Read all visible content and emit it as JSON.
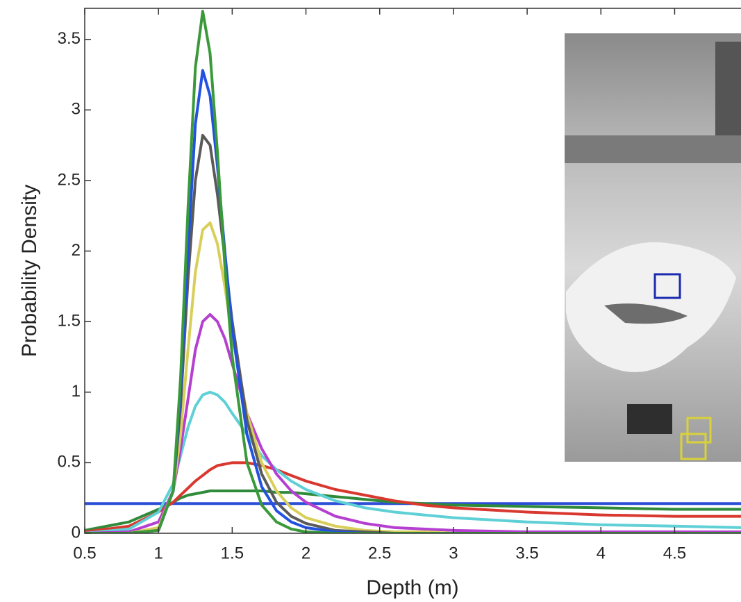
{
  "chart_data": {
    "type": "line",
    "x_label": "Depth (m)",
    "y_label": "Probability Density",
    "x": [
      0.5,
      0.8,
      1.0,
      1.1,
      1.15,
      1.2,
      1.25,
      1.3,
      1.35,
      1.4,
      1.45,
      1.5,
      1.6,
      1.7,
      1.8,
      1.9,
      2.0,
      2.2,
      2.4,
      2.6,
      2.8,
      3.0,
      3.5,
      4.0,
      4.5,
      4.95
    ],
    "series": [
      {
        "color": "#2b4fd6",
        "values": [
          0.21,
          0.21,
          0.21,
          0.21,
          0.21,
          0.21,
          0.21,
          0.21,
          0.21,
          0.21,
          0.21,
          0.21,
          0.21,
          0.21,
          0.21,
          0.21,
          0.21,
          0.21,
          0.21,
          0.21,
          0.21,
          0.21,
          0.21,
          0.21,
          0.21,
          0.21
        ]
      },
      {
        "color": "#2f8a3a",
        "values": [
          0.02,
          0.08,
          0.17,
          0.22,
          0.25,
          0.27,
          0.28,
          0.29,
          0.3,
          0.3,
          0.3,
          0.3,
          0.3,
          0.3,
          0.29,
          0.29,
          0.28,
          0.26,
          0.24,
          0.22,
          0.21,
          0.2,
          0.19,
          0.18,
          0.17,
          0.17
        ]
      },
      {
        "color": "#d9382f",
        "values": [
          0.01,
          0.05,
          0.15,
          0.22,
          0.27,
          0.32,
          0.37,
          0.41,
          0.45,
          0.48,
          0.49,
          0.5,
          0.5,
          0.48,
          0.45,
          0.41,
          0.37,
          0.31,
          0.27,
          0.23,
          0.2,
          0.18,
          0.15,
          0.13,
          0.12,
          0.12
        ]
      },
      {
        "color": "#5fd0d6",
        "values": [
          0,
          0.03,
          0.15,
          0.35,
          0.55,
          0.75,
          0.9,
          0.98,
          1.0,
          0.98,
          0.93,
          0.85,
          0.7,
          0.55,
          0.45,
          0.37,
          0.31,
          0.23,
          0.18,
          0.15,
          0.13,
          0.11,
          0.08,
          0.06,
          0.05,
          0.04
        ]
      },
      {
        "color": "#b43fd0",
        "values": [
          0,
          0.01,
          0.08,
          0.3,
          0.6,
          0.95,
          1.3,
          1.5,
          1.55,
          1.5,
          1.38,
          1.2,
          0.85,
          0.6,
          0.42,
          0.3,
          0.22,
          0.12,
          0.07,
          0.04,
          0.03,
          0.02,
          0.01,
          0.01,
          0.01,
          0.01
        ]
      },
      {
        "color": "#d8cf5a",
        "values": [
          0,
          0,
          0.04,
          0.3,
          0.7,
          1.3,
          1.85,
          2.15,
          2.2,
          2.05,
          1.75,
          1.4,
          0.85,
          0.5,
          0.3,
          0.18,
          0.11,
          0.05,
          0.02,
          0.01,
          0.01,
          0,
          0,
          0,
          0,
          0
        ]
      },
      {
        "color": "#5a5a5a",
        "values": [
          0,
          0,
          0.02,
          0.3,
          0.9,
          1.8,
          2.5,
          2.82,
          2.75,
          2.4,
          1.95,
          1.5,
          0.8,
          0.42,
          0.22,
          0.12,
          0.07,
          0.02,
          0.01,
          0,
          0,
          0,
          0,
          0,
          0,
          0
        ]
      },
      {
        "color": "#2352e0",
        "values": [
          0,
          0,
          0.02,
          0.3,
          1.0,
          2.0,
          2.9,
          3.28,
          3.1,
          2.6,
          2.0,
          1.45,
          0.7,
          0.33,
          0.16,
          0.08,
          0.04,
          0.01,
          0,
          0,
          0,
          0,
          0,
          0,
          0,
          0
        ]
      },
      {
        "color": "#3a9a3a",
        "values": [
          0,
          0,
          0.02,
          0.3,
          1.1,
          2.3,
          3.3,
          3.7,
          3.4,
          2.7,
          1.9,
          1.25,
          0.5,
          0.2,
          0.08,
          0.03,
          0.01,
          0,
          0,
          0,
          0,
          0,
          0,
          0,
          0,
          0
        ]
      }
    ],
    "xlim": [
      0.5,
      4.95
    ],
    "ylim": [
      0,
      3.72
    ],
    "xticks": [
      0.5,
      1,
      1.5,
      2,
      2.5,
      3,
      3.5,
      4,
      4.5
    ],
    "yticks": [
      0,
      0.5,
      1,
      1.5,
      2,
      2.5,
      3,
      3.5
    ]
  }
}
